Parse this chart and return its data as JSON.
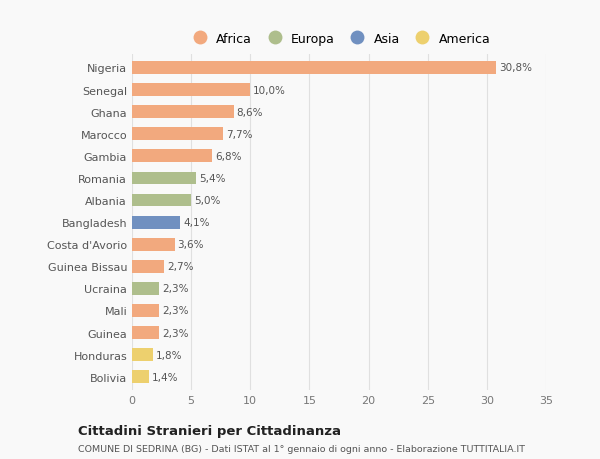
{
  "countries": [
    "Nigeria",
    "Senegal",
    "Ghana",
    "Marocco",
    "Gambia",
    "Romania",
    "Albania",
    "Bangladesh",
    "Costa d'Avorio",
    "Guinea Bissau",
    "Ucraina",
    "Mali",
    "Guinea",
    "Honduras",
    "Bolivia"
  ],
  "values": [
    30.8,
    10.0,
    8.6,
    7.7,
    6.8,
    5.4,
    5.0,
    4.1,
    3.6,
    2.7,
    2.3,
    2.3,
    2.3,
    1.8,
    1.4
  ],
  "labels": [
    "30,8%",
    "10,0%",
    "8,6%",
    "7,7%",
    "6,8%",
    "5,4%",
    "5,0%",
    "4,1%",
    "3,6%",
    "2,7%",
    "2,3%",
    "2,3%",
    "2,3%",
    "1,8%",
    "1,4%"
  ],
  "continents": [
    "Africa",
    "Africa",
    "Africa",
    "Africa",
    "Africa",
    "Europa",
    "Europa",
    "Asia",
    "Africa",
    "Africa",
    "Europa",
    "Africa",
    "Africa",
    "America",
    "America"
  ],
  "colors": {
    "Africa": "#F2A97E",
    "Europa": "#AEBE8C",
    "Asia": "#7090C0",
    "America": "#EDD06E"
  },
  "legend_order": [
    "Africa",
    "Europa",
    "Asia",
    "America"
  ],
  "title": "Cittadini Stranieri per Cittadinanza",
  "subtitle": "COMUNE DI SEDRINA (BG) - Dati ISTAT al 1° gennaio di ogni anno - Elaborazione TUTTITALIA.IT",
  "xlim": [
    0,
    35
  ],
  "xticks": [
    0,
    5,
    10,
    15,
    20,
    25,
    30,
    35
  ],
  "bg_color": "#f9f9f9",
  "grid_color": "#e0e0e0"
}
